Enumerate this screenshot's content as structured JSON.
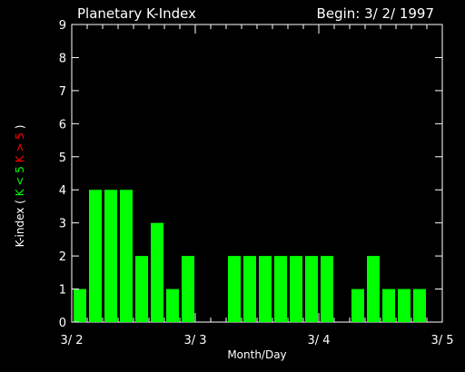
{
  "chart_data": {
    "type": "bar",
    "title": "Planetary K-Index",
    "begin_label": "Begin: 3/ 2/ 1997",
    "xlabel": "Month/Day",
    "ylabel_parts": [
      {
        "text": "K-index",
        "color": "#ffffff"
      },
      {
        "text": "(",
        "color": "#ffffff"
      },
      {
        "text": "K < 5",
        "color": "#00ff00"
      },
      {
        "text": "K > 5",
        "color": "#ff0000"
      },
      {
        "text": ")",
        "color": "#ffffff"
      }
    ],
    "ylim": [
      0,
      9
    ],
    "yticks": [
      0,
      1,
      2,
      3,
      4,
      5,
      6,
      7,
      8,
      9
    ],
    "xlim": [
      0,
      24
    ],
    "xticks": [
      {
        "pos": 0,
        "label": "3/ 2"
      },
      {
        "pos": 8,
        "label": "3/ 3"
      },
      {
        "pos": 16,
        "label": "3/ 4"
      },
      {
        "pos": 24,
        "label": "3/ 5"
      }
    ],
    "bar_interval_units": 1,
    "values": [
      1,
      4,
      4,
      4,
      2,
      3,
      1,
      2,
      0,
      0,
      2,
      2,
      2,
      2,
      2,
      2,
      2,
      0,
      1,
      2,
      1,
      1,
      1,
      0
    ],
    "colors": {
      "bar_low": "#00ff00",
      "bar_high": "#ff0000",
      "axes": "#ffffff",
      "background": "#000000"
    },
    "threshold": 5
  }
}
